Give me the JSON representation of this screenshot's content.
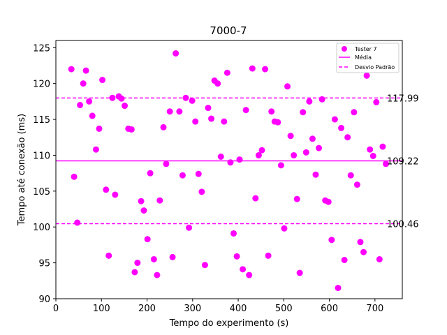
{
  "chart_data": {
    "type": "scatter",
    "title": "7000-7",
    "xlabel": "Tempo do experimento (s)",
    "ylabel": "Tempo até conexão (ms)",
    "xlim": [
      0,
      760
    ],
    "ylim": [
      90,
      126
    ],
    "xticks": [
      0,
      100,
      200,
      300,
      400,
      500,
      600,
      700
    ],
    "yticks": [
      90,
      95,
      100,
      105,
      110,
      115,
      120,
      125
    ],
    "grid": false,
    "legend_position": "top-right",
    "colors": {
      "points": "#ff00ff",
      "lines": "#ff00ff"
    },
    "legend": [
      {
        "label": "Tester 7",
        "kind": "marker"
      },
      {
        "label": "Média",
        "kind": "solid"
      },
      {
        "label": "Desvio Padrão",
        "kind": "dashed"
      }
    ],
    "reference_lines": [
      {
        "name": "Média",
        "value": 109.22,
        "style": "solid",
        "label": "109.22"
      },
      {
        "name": "Desvio Padrão (+)",
        "value": 117.99,
        "style": "dashed",
        "label": "117.99"
      },
      {
        "name": "Desvio Padrão (-)",
        "value": 100.46,
        "style": "dashed",
        "label": "100.46"
      }
    ],
    "series": [
      {
        "name": "Tester 7",
        "points": [
          [
            34,
            122.0
          ],
          [
            40,
            107.0
          ],
          [
            47,
            100.6
          ],
          [
            53,
            117.0
          ],
          [
            60,
            120.0
          ],
          [
            66,
            121.8
          ],
          [
            73,
            117.5
          ],
          [
            80,
            115.5
          ],
          [
            88,
            110.8
          ],
          [
            95,
            113.7
          ],
          [
            102,
            120.5
          ],
          [
            110,
            105.2
          ],
          [
            116,
            96.0
          ],
          [
            124,
            118.0
          ],
          [
            130,
            104.5
          ],
          [
            138,
            118.2
          ],
          [
            144,
            117.9
          ],
          [
            151,
            116.9
          ],
          [
            159,
            113.7
          ],
          [
            166,
            113.6
          ],
          [
            173,
            93.7
          ],
          [
            179,
            95.0
          ],
          [
            187,
            103.6
          ],
          [
            193,
            102.3
          ],
          [
            201,
            98.3
          ],
          [
            207,
            107.5
          ],
          [
            215,
            95.5
          ],
          [
            222,
            93.3
          ],
          [
            228,
            103.7
          ],
          [
            236,
            113.9
          ],
          [
            242,
            108.8
          ],
          [
            250,
            116.1
          ],
          [
            256,
            95.8
          ],
          [
            263,
            124.2
          ],
          [
            271,
            116.1
          ],
          [
            278,
            107.2
          ],
          [
            285,
            118.0
          ],
          [
            292,
            99.9
          ],
          [
            299,
            117.6
          ],
          [
            306,
            114.7
          ],
          [
            313,
            107.4
          ],
          [
            320,
            104.9
          ],
          [
            327,
            94.7
          ],
          [
            334,
            116.6
          ],
          [
            341,
            115.1
          ],
          [
            348,
            120.4
          ],
          [
            355,
            120.0
          ],
          [
            362,
            109.8
          ],
          [
            369,
            114.7
          ],
          [
            376,
            121.5
          ],
          [
            383,
            109.0
          ],
          [
            390,
            99.1
          ],
          [
            397,
            95.9
          ],
          [
            403,
            109.4
          ],
          [
            410,
            94.1
          ],
          [
            417,
            116.3
          ],
          [
            424,
            93.3
          ],
          [
            431,
            122.1
          ],
          [
            438,
            104.0
          ],
          [
            445,
            110.0
          ],
          [
            452,
            110.7
          ],
          [
            459,
            122.0
          ],
          [
            466,
            96.0
          ],
          [
            473,
            116.1
          ],
          [
            480,
            114.7
          ],
          [
            487,
            114.6
          ],
          [
            494,
            108.6
          ],
          [
            501,
            99.8
          ],
          [
            508,
            119.6
          ],
          [
            515,
            112.7
          ],
          [
            522,
            110.0
          ],
          [
            529,
            103.9
          ],
          [
            535,
            93.6
          ],
          [
            542,
            116.0
          ],
          [
            549,
            110.4
          ],
          [
            556,
            117.5
          ],
          [
            563,
            112.3
          ],
          [
            570,
            107.3
          ],
          [
            577,
            111.0
          ],
          [
            584,
            117.8
          ],
          [
            591,
            103.7
          ],
          [
            598,
            103.5
          ],
          [
            605,
            98.2
          ],
          [
            612,
            115.0
          ],
          [
            619,
            91.5
          ],
          [
            626,
            113.8
          ],
          [
            633,
            95.4
          ],
          [
            640,
            112.5
          ],
          [
            647,
            107.2
          ],
          [
            654,
            116.0
          ],
          [
            661,
            105.9
          ],
          [
            668,
            97.9
          ],
          [
            675,
            96.5
          ],
          [
            682,
            121.1
          ],
          [
            689,
            110.8
          ],
          [
            696,
            109.9
          ],
          [
            703,
            117.4
          ],
          [
            710,
            95.5
          ],
          [
            717,
            111.2
          ],
          [
            724,
            108.8
          ]
        ]
      }
    ]
  }
}
